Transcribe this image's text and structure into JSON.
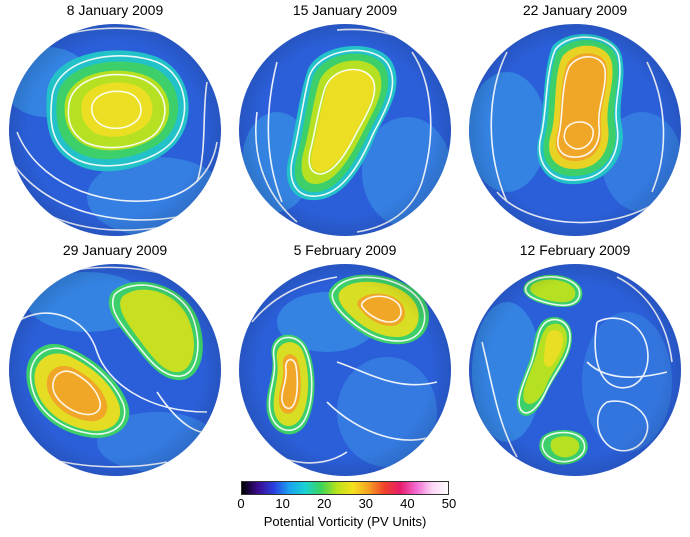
{
  "panels": [
    {
      "date": "8 January 2009",
      "vortex": "single"
    },
    {
      "date": "15 January 2009",
      "vortex": "elongated"
    },
    {
      "date": "22 January 2009",
      "vortex": "elongated-strong"
    },
    {
      "date": "29 January 2009",
      "vortex": "split"
    },
    {
      "date": "5 February 2009",
      "vortex": "split"
    },
    {
      "date": "12 February 2009",
      "vortex": "dissipated"
    }
  ],
  "colorbar": {
    "label": "Potential Vorticity (PV Units)",
    "ticks": [
      "0",
      "10",
      "20",
      "30",
      "40",
      "50"
    ],
    "range": [
      0,
      50
    ],
    "colors": [
      "#000000",
      "#3a0a8c",
      "#2a3fe0",
      "#1aa2f0",
      "#19d2d2",
      "#3cd35a",
      "#b8e21a",
      "#f6e11e",
      "#f5a024",
      "#f0402a",
      "#e61c6e",
      "#f36bd2",
      "#fbd6f4",
      "#ffffff"
    ]
  }
}
